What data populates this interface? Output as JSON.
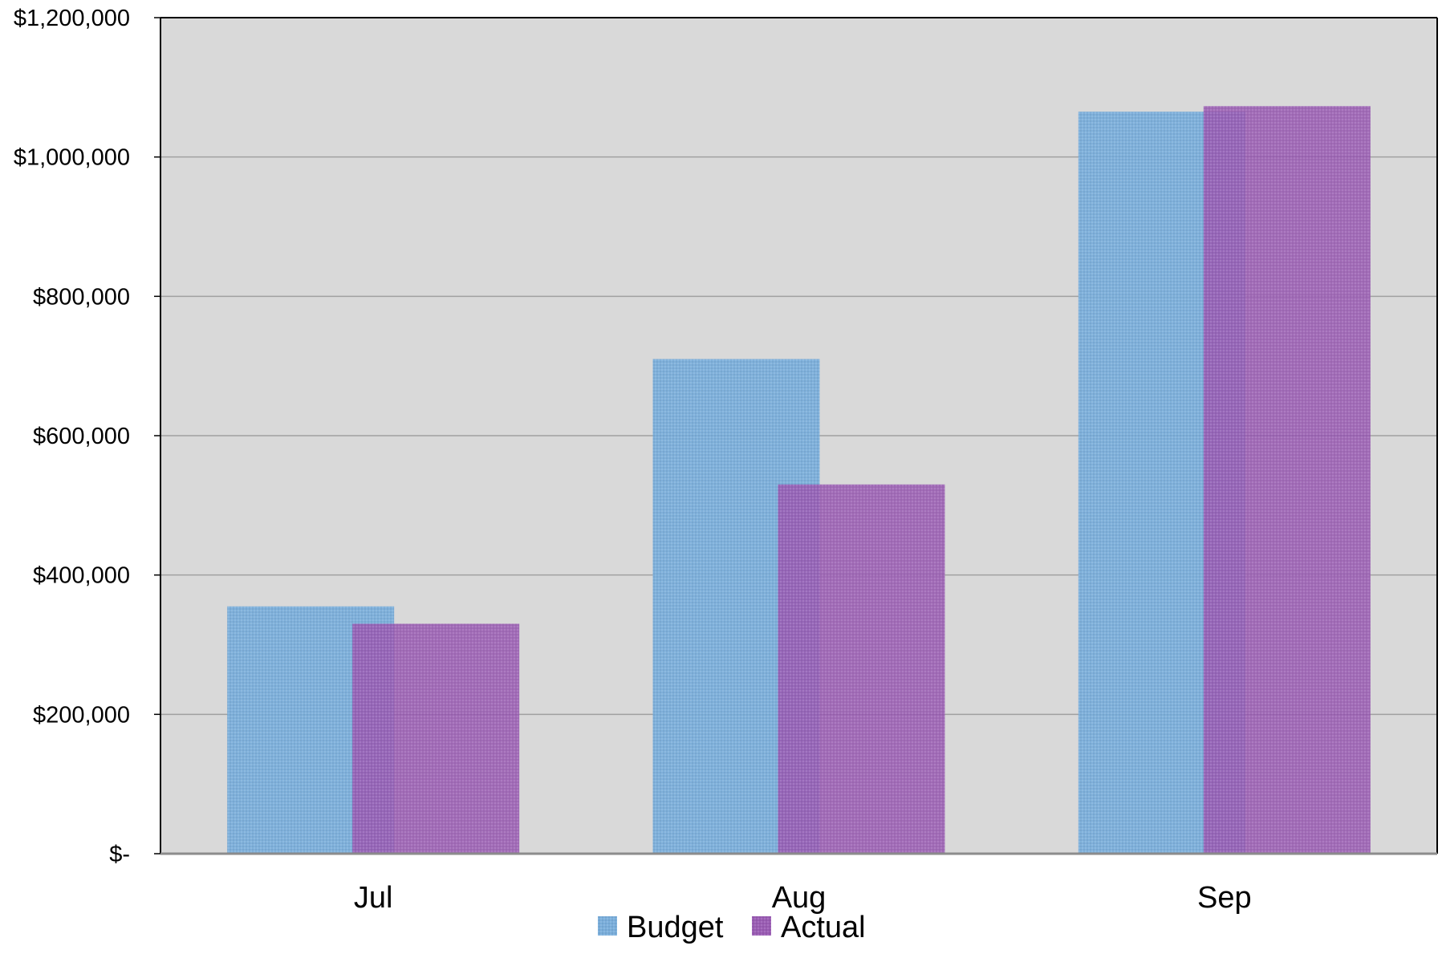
{
  "chart_data": {
    "type": "bar",
    "title": "",
    "xlabel": "",
    "ylabel": "",
    "categories": [
      "Jul",
      "Aug",
      "Sep"
    ],
    "series": [
      {
        "name": "Budget",
        "values": [
          355000,
          710000,
          1065000
        ]
      },
      {
        "name": "Actual",
        "values": [
          330000,
          530000,
          1073000
        ]
      }
    ],
    "ylim": [
      0,
      1200000
    ],
    "yticks": [
      0,
      200000,
      400000,
      600000,
      800000,
      1000000,
      1200000
    ],
    "ytick_labels": [
      "$-",
      "$200,000",
      "$400,000",
      "$600,000",
      "$800,000",
      "$1,000,000",
      "$1,200,000"
    ],
    "grid": true,
    "legend_position": "bottom",
    "colors": {
      "plot_background": "#d9d9d9",
      "gridline": "#a0a0a0",
      "Budget": "#7aaedb",
      "Actual": "#9a5cb4"
    }
  }
}
